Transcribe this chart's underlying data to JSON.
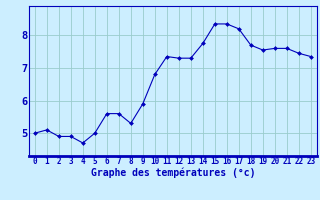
{
  "x": [
    0,
    1,
    2,
    3,
    4,
    5,
    6,
    7,
    8,
    9,
    10,
    11,
    12,
    13,
    14,
    15,
    16,
    17,
    18,
    19,
    20,
    21,
    22,
    23
  ],
  "y": [
    5.0,
    5.1,
    4.9,
    4.9,
    4.7,
    5.0,
    5.6,
    5.6,
    5.3,
    5.9,
    6.8,
    7.35,
    7.3,
    7.3,
    7.75,
    8.35,
    8.35,
    8.2,
    7.7,
    7.55,
    7.6,
    7.6,
    7.45,
    7.35
  ],
  "line_color": "#0000bb",
  "marker": "D",
  "marker_size": 2.0,
  "background_color": "#cceeff",
  "grid_color": "#99cccc",
  "xlabel": "Graphe des températures (°c)",
  "xlabel_color": "#0000bb",
  "xlabel_fontsize": 7,
  "tick_color": "#0000bb",
  "tick_fontsize": 5.5,
  "ytick_fontsize": 7.5,
  "ylim": [
    4.3,
    8.9
  ],
  "yticks": [
    5,
    6,
    7,
    8
  ],
  "xlim": [
    -0.5,
    23.5
  ],
  "spine_color": "#0000bb",
  "xticklabels": [
    "0",
    "1",
    "2",
    "3",
    "4",
    "5",
    "6",
    "7",
    "8",
    "9",
    "10",
    "11",
    "12",
    "13",
    "14",
    "15",
    "16",
    "17",
    "18",
    "19",
    "20",
    "21",
    "22",
    "23"
  ]
}
